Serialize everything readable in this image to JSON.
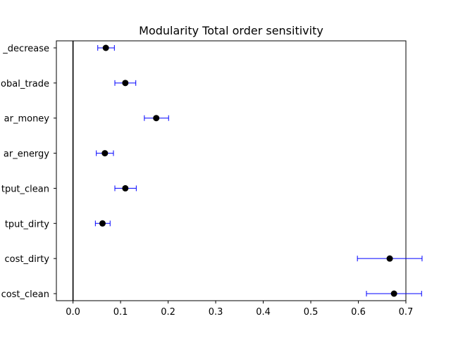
{
  "chart_data": {
    "type": "scatter",
    "title": "Modularity Total order sensitivity",
    "xlabel": "",
    "ylabel": "",
    "xlim": [
      -0.035,
      0.7
    ],
    "x_ticks": [
      "0.0",
      "0.1",
      "0.2",
      "0.3",
      "0.4",
      "0.5",
      "0.6",
      "0.7"
    ],
    "x_tick_values": [
      0.0,
      0.1,
      0.2,
      0.3,
      0.4,
      0.5,
      0.6,
      0.7
    ],
    "grid": false,
    "reference_line_x": 0.0,
    "categories": [
      "_decrease",
      "obal_trade",
      "ar_money",
      "ar_energy",
      "tput_clean",
      "tput_dirty",
      "cost_dirty",
      "cost_clean"
    ],
    "values": [
      0.069,
      0.11,
      0.175,
      0.067,
      0.11,
      0.062,
      0.666,
      0.675
    ],
    "error_low": [
      0.052,
      0.088,
      0.15,
      0.049,
      0.088,
      0.047,
      0.598,
      0.617
    ],
    "error_high": [
      0.087,
      0.132,
      0.201,
      0.085,
      0.133,
      0.078,
      0.734,
      0.733
    ],
    "colors": {
      "point": "#000000",
      "errorbar": "#0000ff",
      "axis": "#000000"
    }
  }
}
